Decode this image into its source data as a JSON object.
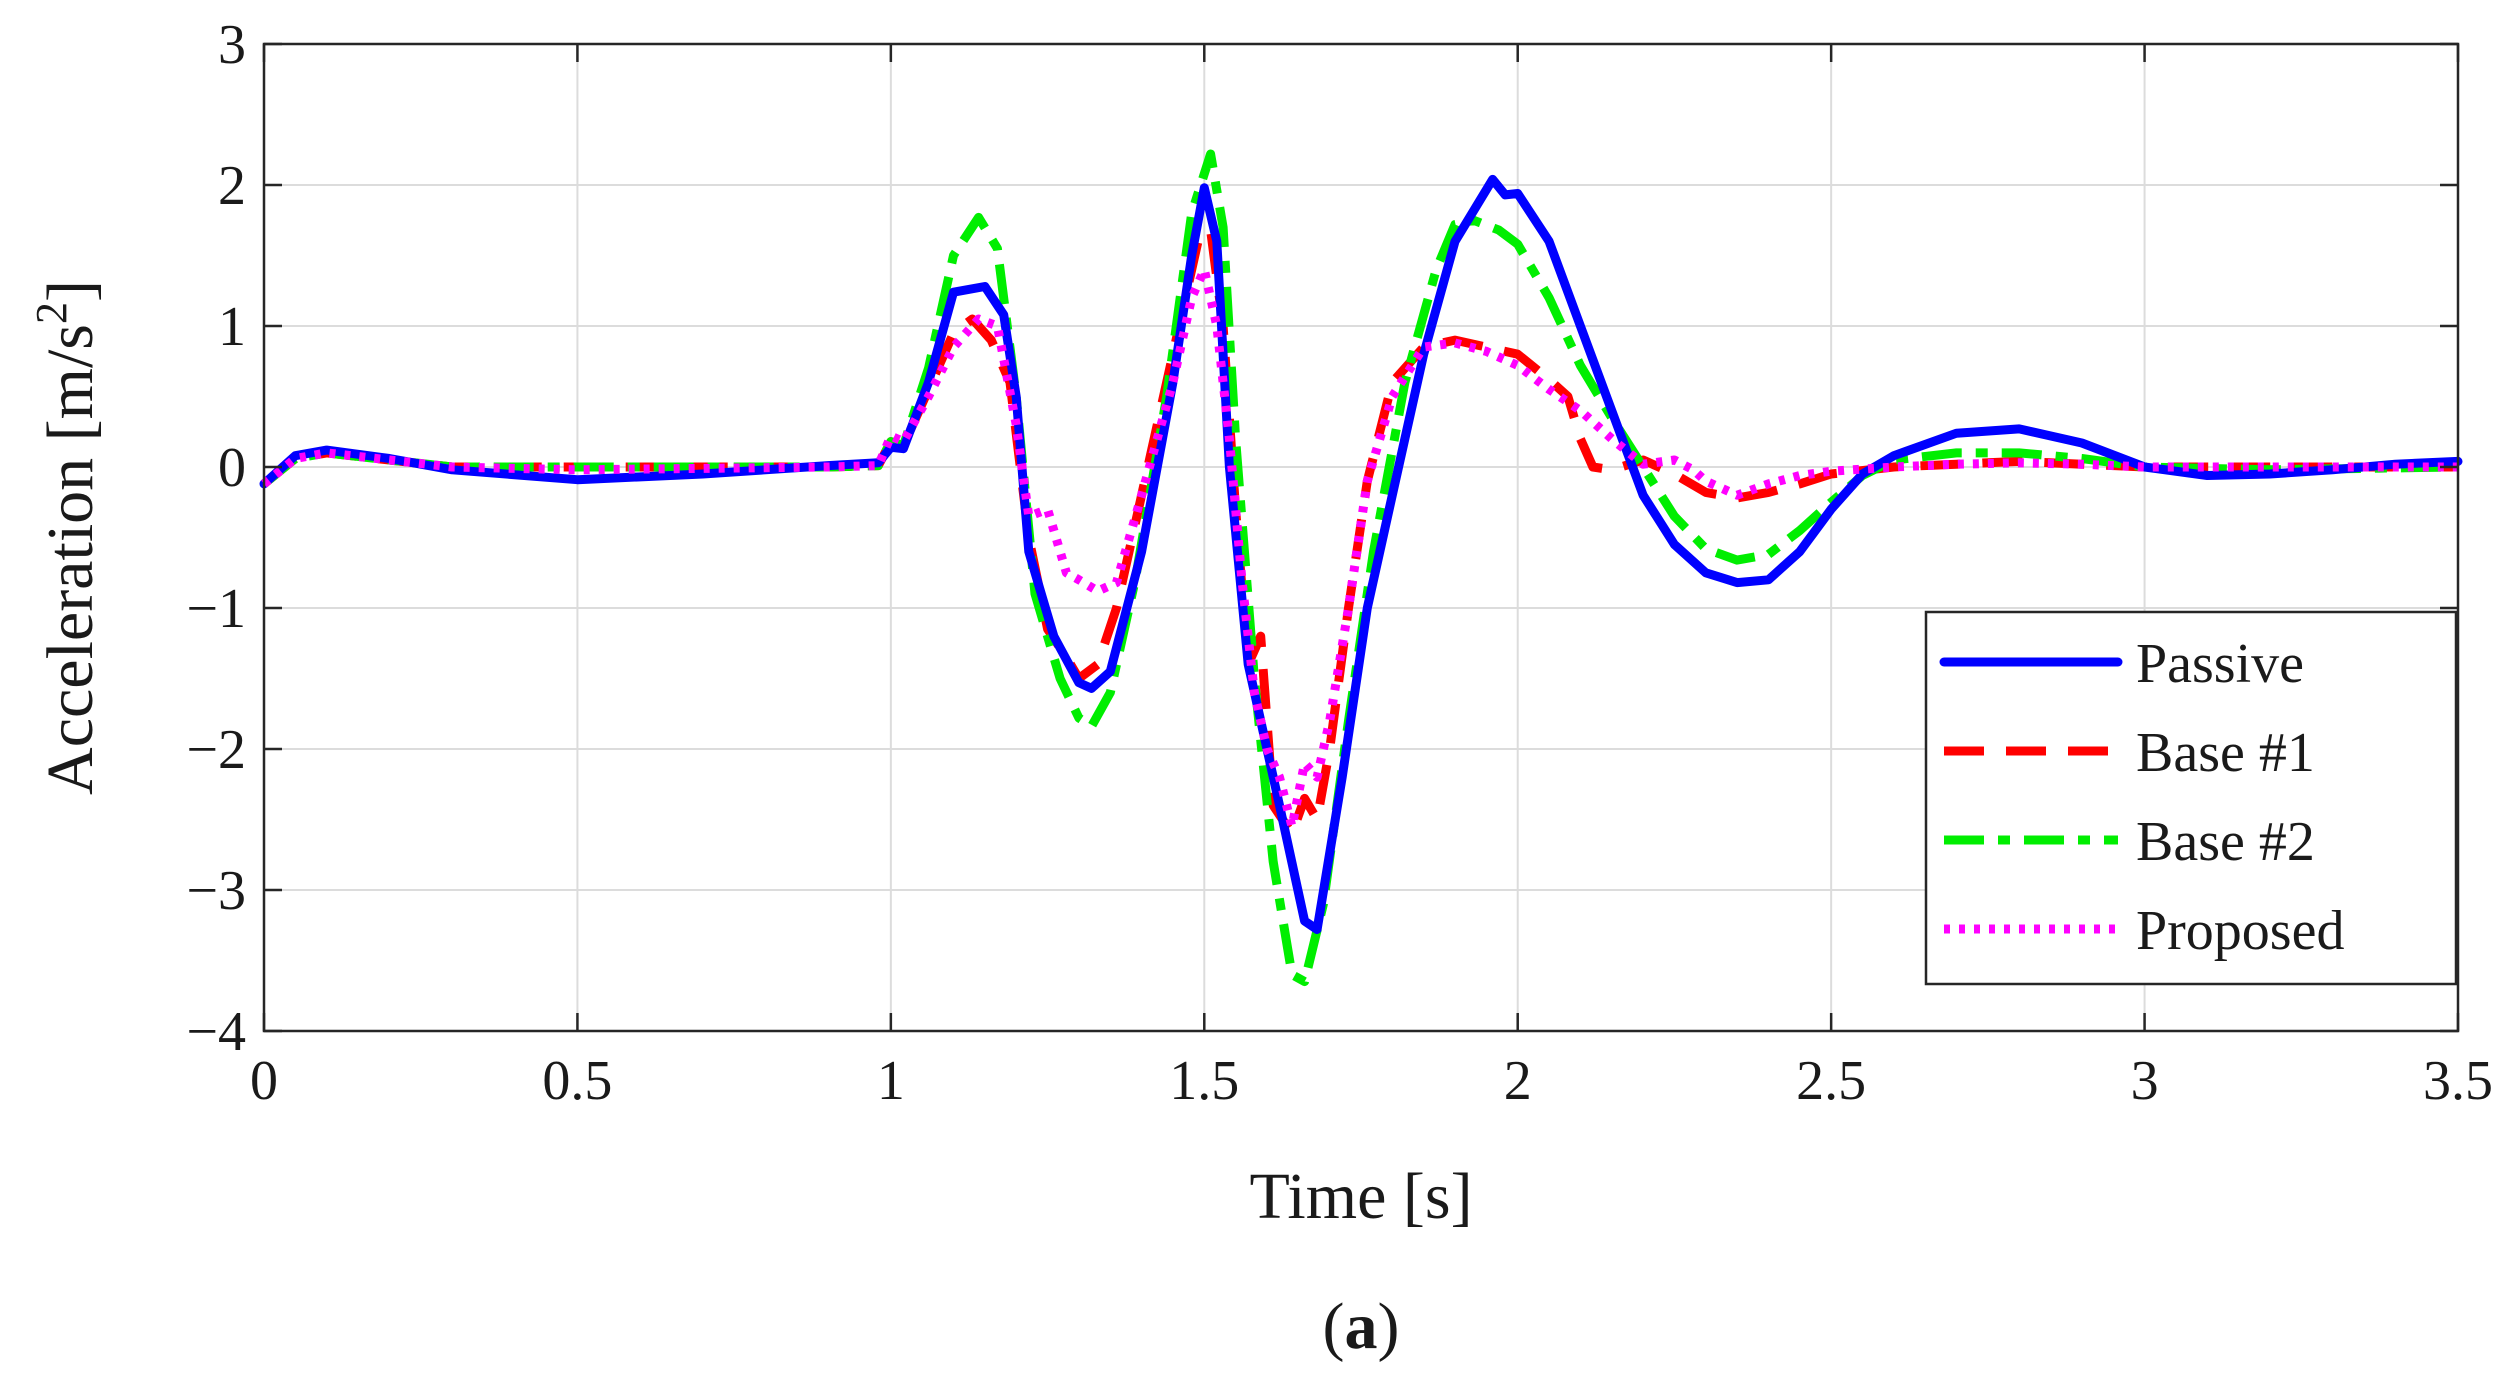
{
  "chart_data": {
    "type": "line",
    "xlabel": "Time [s]",
    "ylabel_main": "Acceleration [m/s",
    "ylabel_sup": "2",
    "ylabel_close": "]",
    "caption_open": "(",
    "caption_letter": "a",
    "caption_close": ")",
    "xlim": [
      0,
      3.5
    ],
    "ylim": [
      -4,
      3
    ],
    "xticks": [
      0,
      0.5,
      1,
      1.5,
      2,
      2.5,
      3,
      3.5
    ],
    "xtick_labels": [
      "0",
      "0.5",
      "1",
      "1.5",
      "2",
      "2.5",
      "3",
      "3.5"
    ],
    "yticks": [
      -4,
      -3,
      -2,
      -1,
      0,
      1,
      2,
      3
    ],
    "ytick_labels": [
      "−4",
      "−3",
      "−2",
      "−1",
      "0",
      "1",
      "2",
      "3"
    ],
    "grid": true,
    "legend_position": "bottom-right",
    "series": [
      {
        "name": "Passive",
        "color": "#0000ff",
        "dash": "solid",
        "points": [
          [
            0,
            -0.12
          ],
          [
            0.05,
            0.08
          ],
          [
            0.1,
            0.12
          ],
          [
            0.2,
            0.06
          ],
          [
            0.3,
            -0.02
          ],
          [
            0.5,
            -0.09
          ],
          [
            0.7,
            -0.05
          ],
          [
            0.9,
            0.01
          ],
          [
            0.98,
            0.03
          ],
          [
            1.0,
            0.14
          ],
          [
            1.02,
            0.13
          ],
          [
            1.06,
            0.6
          ],
          [
            1.1,
            1.24
          ],
          [
            1.15,
            1.28
          ],
          [
            1.18,
            1.08
          ],
          [
            1.2,
            0.5
          ],
          [
            1.22,
            -0.6
          ],
          [
            1.26,
            -1.2
          ],
          [
            1.3,
            -1.53
          ],
          [
            1.32,
            -1.57
          ],
          [
            1.35,
            -1.45
          ],
          [
            1.4,
            -0.6
          ],
          [
            1.45,
            0.6
          ],
          [
            1.48,
            1.5
          ],
          [
            1.5,
            1.98
          ],
          [
            1.52,
            1.6
          ],
          [
            1.54,
            0.0
          ],
          [
            1.57,
            -1.4
          ],
          [
            1.62,
            -2.4
          ],
          [
            1.66,
            -3.22
          ],
          [
            1.68,
            -3.28
          ],
          [
            1.72,
            -2.2
          ],
          [
            1.76,
            -1.0
          ],
          [
            1.8,
            -0.2
          ],
          [
            1.85,
            0.8
          ],
          [
            1.9,
            1.6
          ],
          [
            1.96,
            2.04
          ],
          [
            1.98,
            1.93
          ],
          [
            2.0,
            1.94
          ],
          [
            2.05,
            1.6
          ],
          [
            2.1,
            1.0
          ],
          [
            2.15,
            0.4
          ],
          [
            2.2,
            -0.2
          ],
          [
            2.25,
            -0.55
          ],
          [
            2.3,
            -0.75
          ],
          [
            2.35,
            -0.82
          ],
          [
            2.4,
            -0.8
          ],
          [
            2.45,
            -0.6
          ],
          [
            2.5,
            -0.3
          ],
          [
            2.55,
            -0.05
          ],
          [
            2.6,
            0.08
          ],
          [
            2.7,
            0.24
          ],
          [
            2.8,
            0.27
          ],
          [
            2.9,
            0.17
          ],
          [
            3.0,
            0.0
          ],
          [
            3.1,
            -0.06
          ],
          [
            3.2,
            -0.05
          ],
          [
            3.3,
            -0.02
          ],
          [
            3.4,
            0.02
          ],
          [
            3.5,
            0.04
          ]
        ]
      },
      {
        "name": "Base #1",
        "color": "#ff0000",
        "dash": "dashed",
        "points": [
          [
            0,
            -0.12
          ],
          [
            0.05,
            0.06
          ],
          [
            0.1,
            0.1
          ],
          [
            0.2,
            0.05
          ],
          [
            0.3,
            0.0
          ],
          [
            0.5,
            0.0
          ],
          [
            0.7,
            0.0
          ],
          [
            0.9,
            0.0
          ],
          [
            0.98,
            0.01
          ],
          [
            1.0,
            0.18
          ],
          [
            1.02,
            0.15
          ],
          [
            1.06,
            0.55
          ],
          [
            1.1,
            0.95
          ],
          [
            1.13,
            1.05
          ],
          [
            1.16,
            0.9
          ],
          [
            1.19,
            0.6
          ],
          [
            1.22,
            -0.5
          ],
          [
            1.25,
            -1.15
          ],
          [
            1.28,
            -1.35
          ],
          [
            1.3,
            -1.5
          ],
          [
            1.33,
            -1.4
          ],
          [
            1.36,
            -1.0
          ],
          [
            1.4,
            -0.2
          ],
          [
            1.45,
            0.8
          ],
          [
            1.49,
            1.6
          ],
          [
            1.51,
            1.68
          ],
          [
            1.53,
            1.0
          ],
          [
            1.55,
            -0.3
          ],
          [
            1.57,
            -1.4
          ],
          [
            1.59,
            -1.2
          ],
          [
            1.61,
            -2.4
          ],
          [
            1.64,
            -2.6
          ],
          [
            1.66,
            -2.35
          ],
          [
            1.68,
            -2.5
          ],
          [
            1.7,
            -2.0
          ],
          [
            1.73,
            -1.0
          ],
          [
            1.76,
            -0.1
          ],
          [
            1.8,
            0.6
          ],
          [
            1.85,
            0.85
          ],
          [
            1.9,
            0.9
          ],
          [
            1.95,
            0.85
          ],
          [
            2.0,
            0.8
          ],
          [
            2.05,
            0.62
          ],
          [
            2.08,
            0.5
          ],
          [
            2.1,
            0.2
          ],
          [
            2.12,
            0.0
          ],
          [
            2.15,
            -0.02
          ],
          [
            2.2,
            0.05
          ],
          [
            2.25,
            -0.05
          ],
          [
            2.3,
            -0.18
          ],
          [
            2.35,
            -0.22
          ],
          [
            2.4,
            -0.18
          ],
          [
            2.45,
            -0.12
          ],
          [
            2.5,
            -0.05
          ],
          [
            2.6,
            0.0
          ],
          [
            2.7,
            0.02
          ],
          [
            2.8,
            0.04
          ],
          [
            2.9,
            0.02
          ],
          [
            3.0,
            0.0
          ],
          [
            3.2,
            0.0
          ],
          [
            3.5,
            0.0
          ]
        ]
      },
      {
        "name": "Base #2",
        "color": "#00ee00",
        "dash": "dashdot",
        "points": [
          [
            0,
            -0.12
          ],
          [
            0.05,
            0.06
          ],
          [
            0.1,
            0.1
          ],
          [
            0.2,
            0.05
          ],
          [
            0.3,
            0.0
          ],
          [
            0.5,
            0.0
          ],
          [
            0.7,
            0.0
          ],
          [
            0.9,
            0.0
          ],
          [
            0.98,
            0.01
          ],
          [
            1.0,
            0.18
          ],
          [
            1.02,
            0.15
          ],
          [
            1.06,
            0.7
          ],
          [
            1.1,
            1.5
          ],
          [
            1.14,
            1.77
          ],
          [
            1.17,
            1.55
          ],
          [
            1.2,
            0.5
          ],
          [
            1.23,
            -0.9
          ],
          [
            1.27,
            -1.5
          ],
          [
            1.3,
            -1.78
          ],
          [
            1.32,
            -1.84
          ],
          [
            1.35,
            -1.6
          ],
          [
            1.39,
            -0.8
          ],
          [
            1.44,
            0.5
          ],
          [
            1.48,
            1.8
          ],
          [
            1.51,
            2.22
          ],
          [
            1.53,
            1.7
          ],
          [
            1.55,
            0.2
          ],
          [
            1.58,
            -1.5
          ],
          [
            1.61,
            -2.8
          ],
          [
            1.64,
            -3.6
          ],
          [
            1.66,
            -3.65
          ],
          [
            1.69,
            -3.1
          ],
          [
            1.73,
            -1.8
          ],
          [
            1.77,
            -0.6
          ],
          [
            1.82,
            0.6
          ],
          [
            1.87,
            1.4
          ],
          [
            1.9,
            1.72
          ],
          [
            1.93,
            1.75
          ],
          [
            1.97,
            1.68
          ],
          [
            2.0,
            1.58
          ],
          [
            2.05,
            1.2
          ],
          [
            2.1,
            0.72
          ],
          [
            2.15,
            0.35
          ],
          [
            2.2,
            0.0
          ],
          [
            2.25,
            -0.35
          ],
          [
            2.3,
            -0.58
          ],
          [
            2.35,
            -0.66
          ],
          [
            2.4,
            -0.62
          ],
          [
            2.45,
            -0.45
          ],
          [
            2.5,
            -0.25
          ],
          [
            2.55,
            -0.06
          ],
          [
            2.6,
            0.05
          ],
          [
            2.7,
            0.1
          ],
          [
            2.8,
            0.1
          ],
          [
            2.9,
            0.06
          ],
          [
            3.0,
            0.0
          ],
          [
            3.2,
            -0.02
          ],
          [
            3.5,
            0.0
          ]
        ]
      },
      {
        "name": "Proposed",
        "color": "#ff00ff",
        "dash": "dotted",
        "points": [
          [
            0,
            -0.12
          ],
          [
            0.05,
            0.06
          ],
          [
            0.1,
            0.1
          ],
          [
            0.2,
            0.05
          ],
          [
            0.3,
            0.0
          ],
          [
            0.5,
            -0.02
          ],
          [
            0.7,
            -0.01
          ],
          [
            0.9,
            0.0
          ],
          [
            0.98,
            0.01
          ],
          [
            1.0,
            0.22
          ],
          [
            1.02,
            0.18
          ],
          [
            1.06,
            0.5
          ],
          [
            1.1,
            0.85
          ],
          [
            1.14,
            1.05
          ],
          [
            1.17,
            1.0
          ],
          [
            1.2,
            0.3
          ],
          [
            1.22,
            -0.35
          ],
          [
            1.25,
            -0.3
          ],
          [
            1.28,
            -0.75
          ],
          [
            1.3,
            -0.8
          ],
          [
            1.33,
            -0.88
          ],
          [
            1.36,
            -0.82
          ],
          [
            1.4,
            -0.2
          ],
          [
            1.45,
            0.6
          ],
          [
            1.48,
            1.2
          ],
          [
            1.5,
            1.4
          ],
          [
            1.52,
            1.0
          ],
          [
            1.54,
            0.2
          ],
          [
            1.56,
            -0.8
          ],
          [
            1.58,
            -1.6
          ],
          [
            1.6,
            -2.0
          ],
          [
            1.62,
            -2.2
          ],
          [
            1.64,
            -2.55
          ],
          [
            1.66,
            -2.1
          ],
          [
            1.68,
            -2.2
          ],
          [
            1.7,
            -1.8
          ],
          [
            1.73,
            -1.0
          ],
          [
            1.76,
            -0.1
          ],
          [
            1.8,
            0.5
          ],
          [
            1.85,
            0.85
          ],
          [
            1.9,
            0.88
          ],
          [
            1.95,
            0.82
          ],
          [
            2.0,
            0.72
          ],
          [
            2.05,
            0.55
          ],
          [
            2.1,
            0.4
          ],
          [
            2.15,
            0.2
          ],
          [
            2.2,
            0.02
          ],
          [
            2.25,
            0.05
          ],
          [
            2.28,
            -0.02
          ],
          [
            2.3,
            -0.1
          ],
          [
            2.35,
            -0.2
          ],
          [
            2.4,
            -0.12
          ],
          [
            2.45,
            -0.06
          ],
          [
            2.5,
            -0.03
          ],
          [
            2.6,
            0.0
          ],
          [
            2.7,
            0.02
          ],
          [
            2.8,
            0.03
          ],
          [
            2.9,
            0.02
          ],
          [
            3.0,
            0.0
          ],
          [
            3.2,
            0.0
          ],
          [
            3.5,
            0.0
          ]
        ]
      }
    ]
  }
}
